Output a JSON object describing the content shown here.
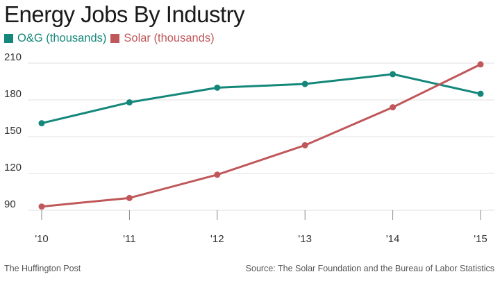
{
  "chart_data": {
    "type": "line",
    "title": "Energy Jobs By Industry",
    "categories": [
      "'10",
      "'11",
      "'12",
      "'13",
      "'14",
      "'15"
    ],
    "series": [
      {
        "name": "O&G (thousands)",
        "color": "#14877a",
        "values": [
          161,
          178,
          190,
          193,
          201,
          185
        ]
      },
      {
        "name": "Solar (thousands)",
        "color": "#c0575a",
        "values": [
          93,
          100,
          119,
          143,
          174,
          209
        ]
      }
    ],
    "y_ticks": [
      "210",
      "180",
      "150",
      "120",
      "90"
    ],
    "ylim": [
      90,
      210
    ],
    "grid": true,
    "legend_position": "top-left"
  },
  "footer": {
    "left": "The Huffington Post",
    "right": "Source: The Solar Foundation and the Bureau of Labor Statistics"
  }
}
